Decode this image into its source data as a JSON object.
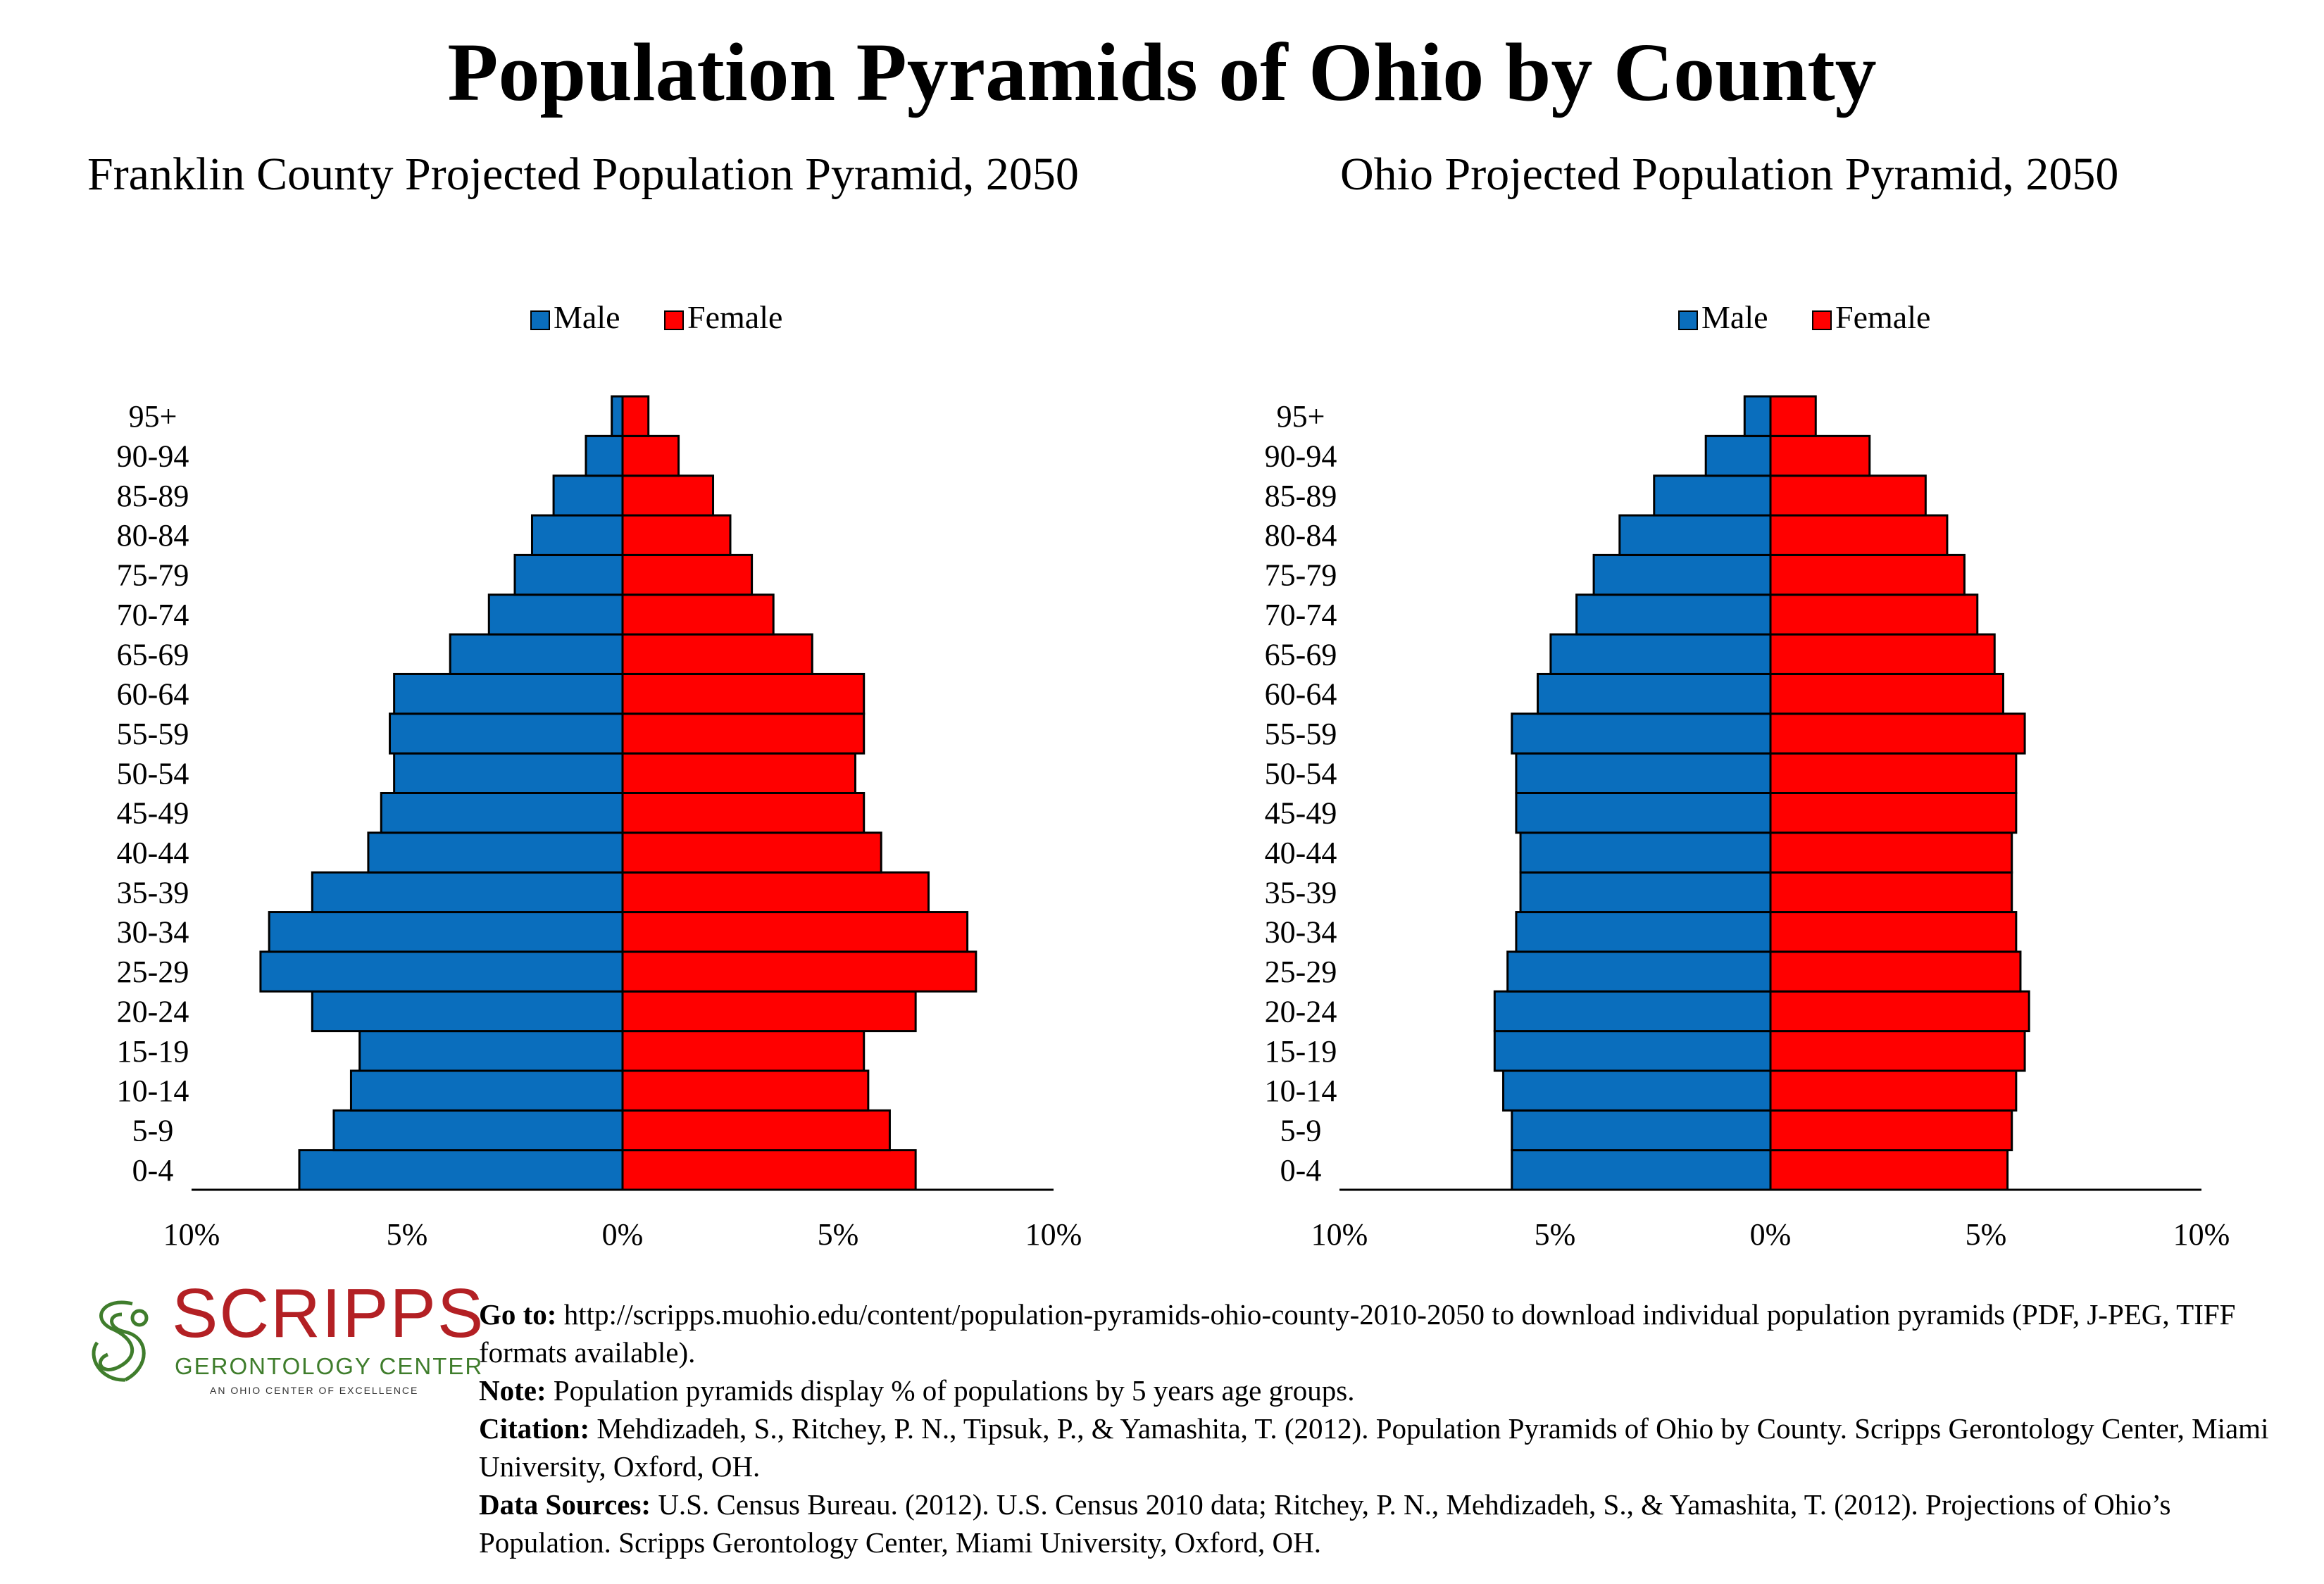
{
  "page": {
    "title": "Population Pyramids of Ohio by County"
  },
  "colors": {
    "male": "#0a6ebd",
    "female": "#ff0000",
    "logo_red": "#b32024",
    "logo_green": "#3f7d2c"
  },
  "legend": {
    "male_label": "Male",
    "female_label": "Female"
  },
  "chart_data": [
    {
      "type": "bar",
      "orientation": "horizontal",
      "title": "Franklin County Projected Population Pyramid, 2050",
      "categories": [
        "0-4",
        "5-9",
        "10-14",
        "15-19",
        "20-24",
        "25-29",
        "30-34",
        "35-39",
        "40-44",
        "45-49",
        "50-54",
        "55-59",
        "60-64",
        "65-69",
        "70-74",
        "75-79",
        "80-84",
        "85-89",
        "90-94",
        "95+"
      ],
      "series": [
        {
          "name": "Male",
          "values": [
            7.5,
            6.7,
            6.3,
            6.1,
            7.2,
            8.4,
            8.2,
            7.2,
            5.9,
            5.6,
            5.3,
            5.4,
            5.3,
            4.0,
            3.1,
            2.5,
            2.1,
            1.6,
            0.85,
            0.25
          ]
        },
        {
          "name": "Female",
          "values": [
            6.8,
            6.2,
            5.7,
            5.6,
            6.8,
            8.2,
            8.0,
            7.1,
            6.0,
            5.6,
            5.4,
            5.6,
            5.6,
            4.4,
            3.5,
            3.0,
            2.5,
            2.1,
            1.3,
            0.6
          ]
        }
      ],
      "xlim": [
        -10,
        10
      ],
      "tick_labels": [
        "10%",
        "5%",
        "0%",
        "5%",
        "10%"
      ],
      "legend_position": "top"
    },
    {
      "type": "bar",
      "orientation": "horizontal",
      "title": "Ohio Projected Population Pyramid, 2050",
      "categories": [
        "0-4",
        "5-9",
        "10-14",
        "15-19",
        "20-24",
        "25-29",
        "30-34",
        "35-39",
        "40-44",
        "45-49",
        "50-54",
        "55-59",
        "60-64",
        "65-69",
        "70-74",
        "75-79",
        "80-84",
        "85-89",
        "90-94",
        "95+"
      ],
      "series": [
        {
          "name": "Male",
          "values": [
            6.0,
            6.0,
            6.2,
            6.4,
            6.4,
            6.1,
            5.9,
            5.8,
            5.8,
            5.9,
            5.9,
            6.0,
            5.4,
            5.1,
            4.5,
            4.1,
            3.5,
            2.7,
            1.5,
            0.6
          ]
        },
        {
          "name": "Female",
          "values": [
            5.5,
            5.6,
            5.7,
            5.9,
            6.0,
            5.8,
            5.7,
            5.6,
            5.6,
            5.7,
            5.7,
            5.9,
            5.4,
            5.2,
            4.8,
            4.5,
            4.1,
            3.6,
            2.3,
            1.05
          ]
        }
      ],
      "xlim": [
        -10,
        10
      ],
      "tick_labels": [
        "10%",
        "5%",
        "0%",
        "5%",
        "10%"
      ],
      "legend_position": "top"
    }
  ],
  "logo": {
    "name": "SCRIPPS",
    "subtitle": "GERONTOLOGY CENTER",
    "tagline": "AN OHIO CENTER OF EXCELLENCE"
  },
  "notes": {
    "goto_label": "Go to:",
    "goto_text": "http://scripps.muohio.edu/content/population-pyramids-ohio-county-2010-2050 to download individual population pyramids (PDF, J-PEG, TIFF formats available).",
    "note_label": "Note:",
    "note_text": "Population pyramids display % of populations by 5 years age groups.",
    "citation_label": "Citation:",
    "citation_text": "Mehdizadeh, S., Ritchey, P. N., Tipsuk, P., & Yamashita, T. (2012). Population Pyramids of Ohio by County. Scripps Gerontology Center, Miami University, Oxford, OH.",
    "sources_label": "Data Sources:",
    "sources_text": "U.S. Census Bureau. (2012). U.S. Census 2010 data; Ritchey, P. N., Mehdizadeh, S., & Yamashita, T. (2012). Projections of Ohio’s Population. Scripps Gerontology Center, Miami University, Oxford, OH."
  }
}
